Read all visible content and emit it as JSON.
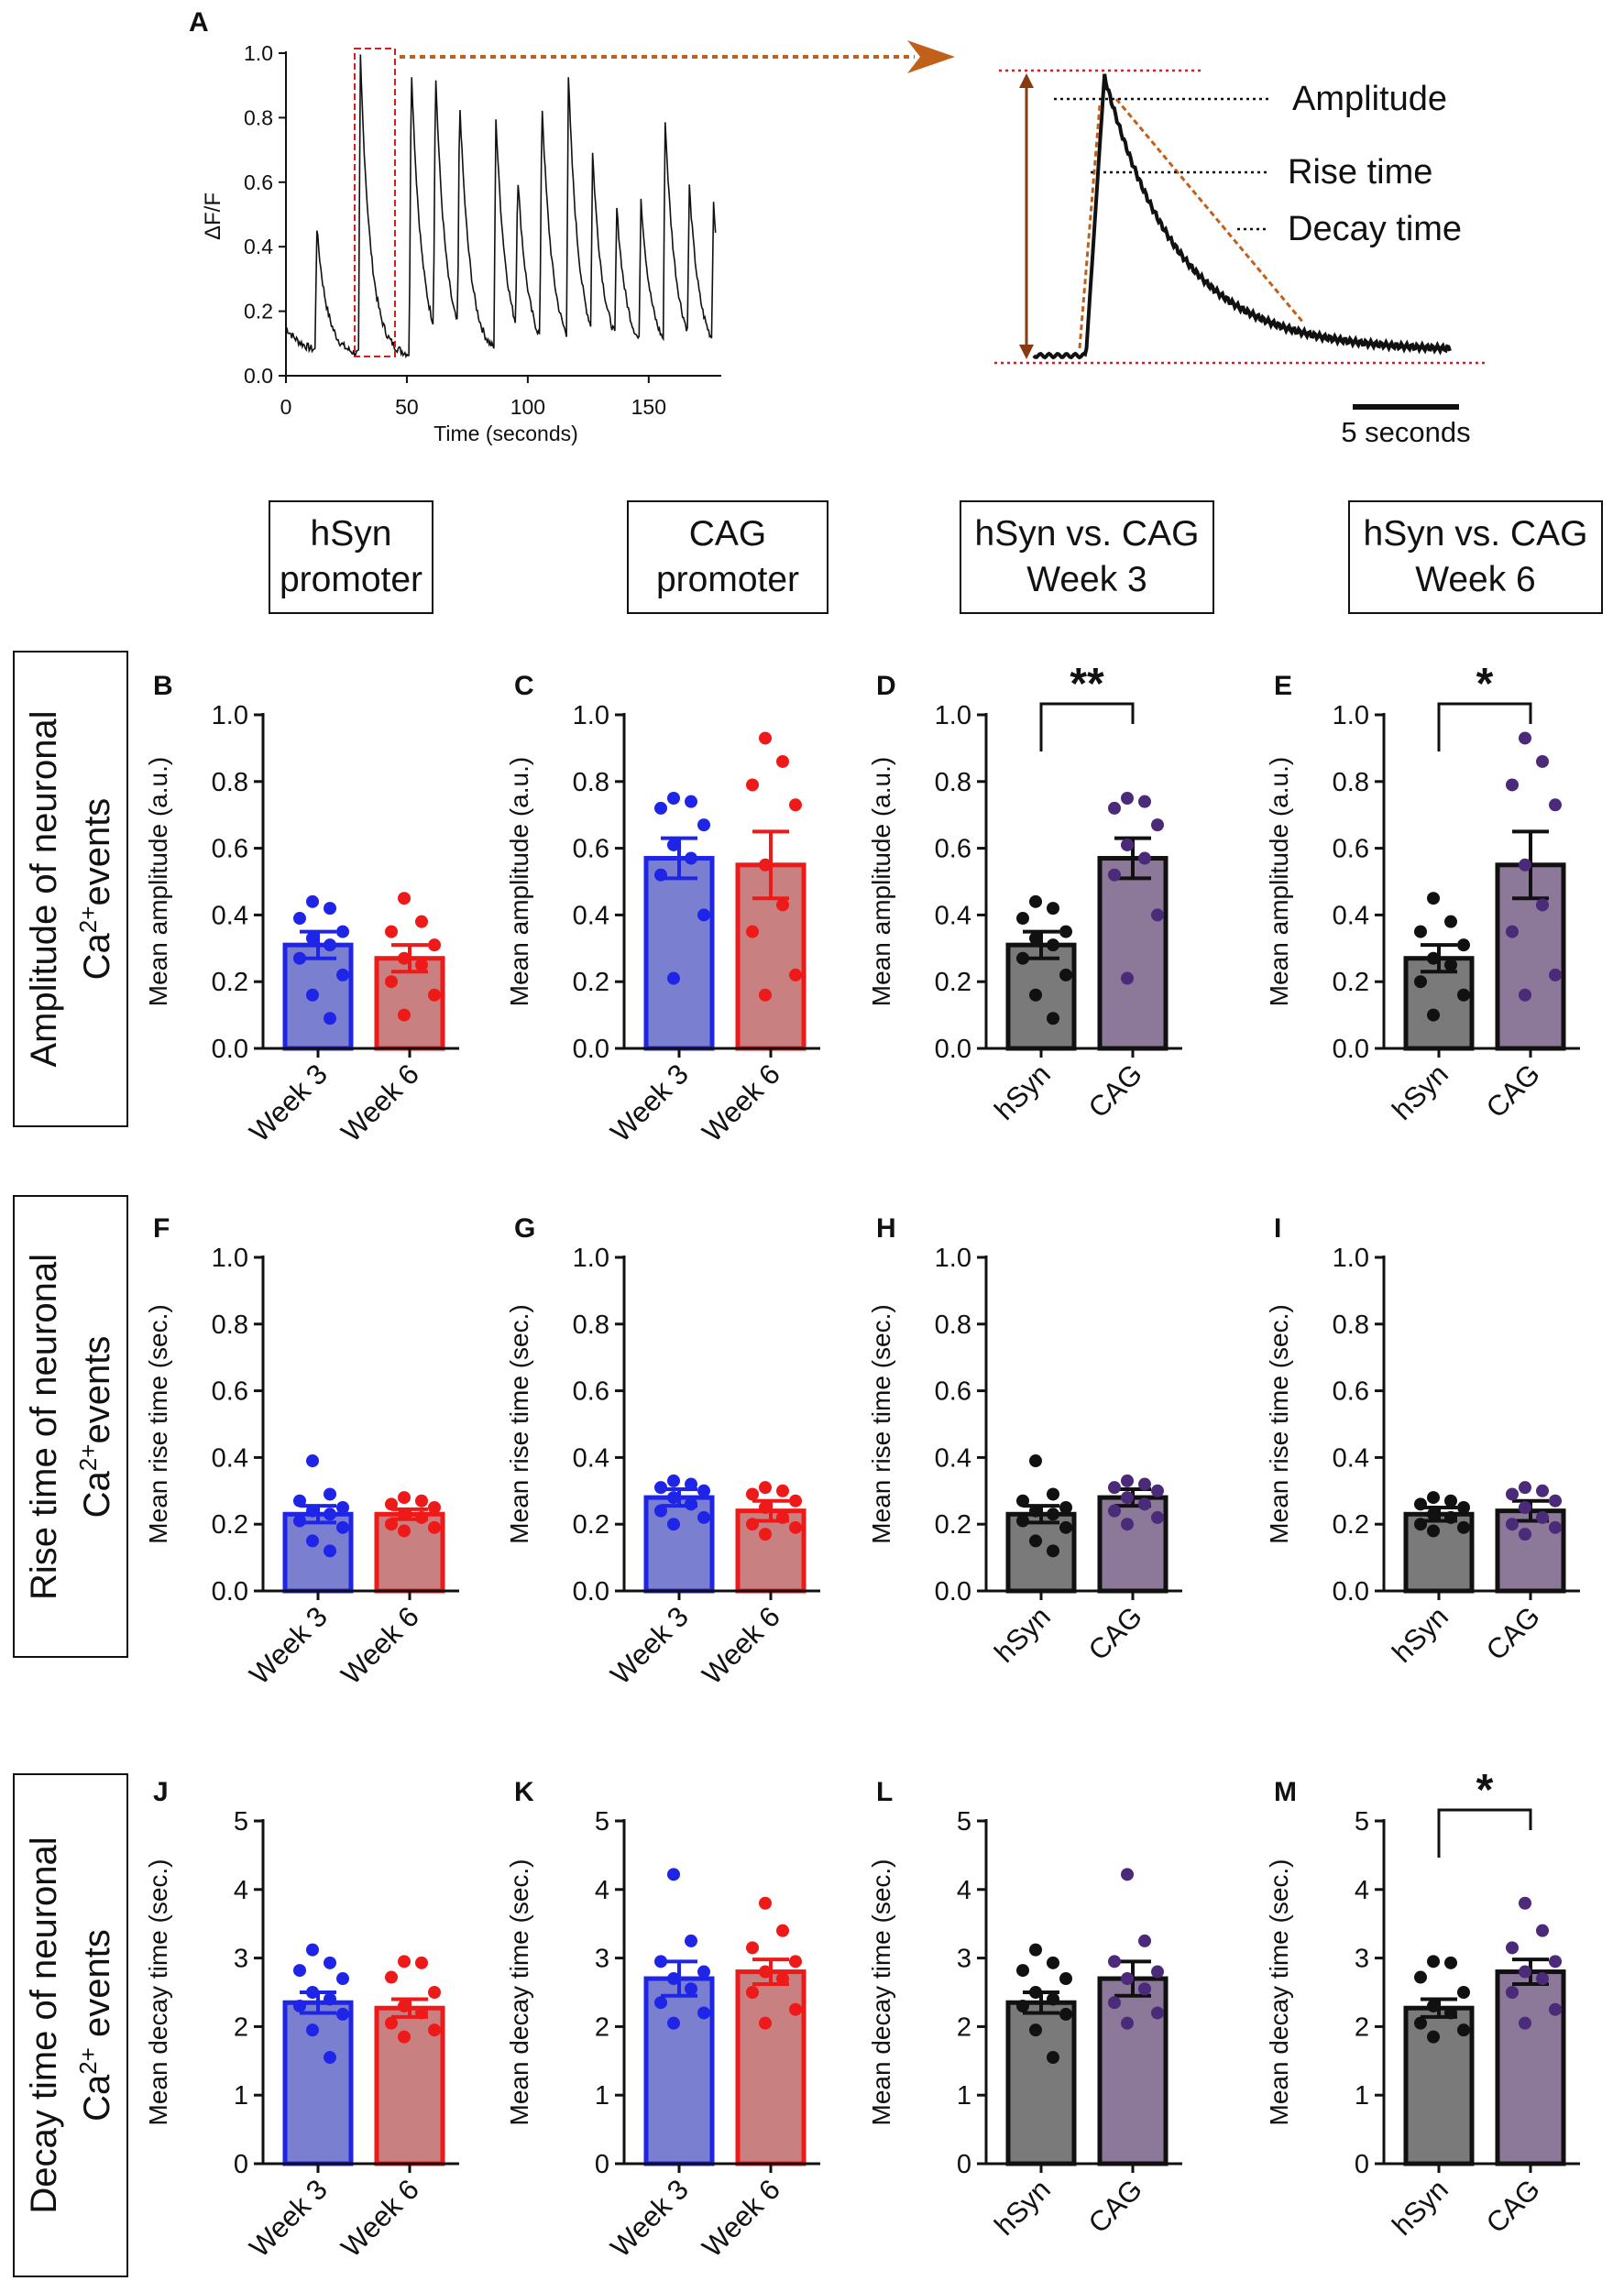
{
  "headers": [
    "hSyn\npromoter",
    "CAG\npromoter",
    "hSyn vs. CAG\nWeek 3",
    "hSyn vs. CAG\nWeek 6"
  ],
  "rows": [
    {
      "main": "Amplitude of neuronal",
      "sub": "Ca",
      "sup": "2+",
      "tail": "events"
    },
    {
      "main": "Rise time of neuronal",
      "sub": "Ca",
      "sup": "2+",
      "tail": "events"
    },
    {
      "main": "Decay time of neuronal",
      "sub": "Ca",
      "sup": "2+",
      "tail": " events"
    }
  ],
  "colors": {
    "blue_fill": "#7b7fd0",
    "blue_edge": "#1f25e6",
    "blue_dot": "#1f25e6",
    "red_fill": "#c98080",
    "red_edge": "#ee1a1a",
    "red_dot": "#ee1a1a",
    "gray_fill": "#7a7a7a",
    "gray_edge": "#111111",
    "gray_dot": "#111111",
    "purple_fill": "#8c7898",
    "purple_edge": "#111111",
    "purple_dot": "#4b2a7a",
    "arrow": "#c0601a",
    "guide": "#d42020"
  },
  "chart_data": [
    {
      "panel": "A",
      "type": "line",
      "xlabel": "Time (seconds)",
      "ylabel": "ΔF/F",
      "xlim": [
        0,
        180
      ],
      "ylim": [
        0,
        1.0
      ],
      "xticks": [
        "0",
        "50",
        "100",
        "150"
      ],
      "yticks": [
        "0.0",
        "0.2",
        "0.4",
        "0.6",
        "0.8",
        "1.0"
      ],
      "baseline": 0.06,
      "events": [
        {
          "t": 12,
          "peak": 0.44
        },
        {
          "t": 30,
          "peak": 0.98
        },
        {
          "t": 51,
          "peak": 0.97
        },
        {
          "t": 61,
          "peak": 0.87
        },
        {
          "t": 71,
          "peak": 0.78
        },
        {
          "t": 86,
          "peak": 0.78
        },
        {
          "t": 95,
          "peak": 0.54
        },
        {
          "t": 105,
          "peak": 0.81
        },
        {
          "t": 116,
          "peak": 0.87
        },
        {
          "t": 126,
          "peak": 0.61
        },
        {
          "t": 136,
          "peak": 0.46
        },
        {
          "t": 146,
          "peak": 0.51
        },
        {
          "t": 156,
          "peak": 0.75
        },
        {
          "t": 166,
          "peak": 0.52
        },
        {
          "t": 176,
          "peak": 0.49
        }
      ],
      "inset": {
        "labels": [
          "Amplitude",
          "Rise time",
          "Decay time"
        ],
        "scalebar": "5 seconds"
      }
    },
    {
      "panel": "B",
      "type": "bar",
      "ylabel": "Mean amplitude (a.u.)",
      "ylim": [
        0,
        1.0
      ],
      "yticks": [
        "0.0",
        "0.2",
        "0.4",
        "0.6",
        "0.8",
        "1.0"
      ],
      "categories": [
        "Week 3",
        "Week 6"
      ],
      "scheme": [
        "blue",
        "red"
      ],
      "values": [
        0.31,
        0.27
      ],
      "sem": [
        0.04,
        0.04
      ],
      "points": [
        [
          0.44,
          0.42,
          0.39,
          0.35,
          0.33,
          0.31,
          0.27,
          0.22,
          0.16,
          0.09
        ],
        [
          0.45,
          0.38,
          0.35,
          0.31,
          0.27,
          0.25,
          0.2,
          0.16,
          0.1
        ]
      ],
      "sig": null
    },
    {
      "panel": "C",
      "type": "bar",
      "ylabel": "Mean amplitude (a.u.)",
      "ylim": [
        0,
        1.0
      ],
      "yticks": [
        "0.0",
        "0.2",
        "0.4",
        "0.6",
        "0.8",
        "1.0"
      ],
      "categories": [
        "Week 3",
        "Week 6"
      ],
      "scheme": [
        "blue",
        "red"
      ],
      "values": [
        0.57,
        0.55
      ],
      "sem": [
        0.06,
        0.1
      ],
      "points": [
        [
          0.75,
          0.74,
          0.72,
          0.67,
          0.61,
          0.57,
          0.52,
          0.4,
          0.21
        ],
        [
          0.93,
          0.86,
          0.79,
          0.73,
          0.55,
          0.43,
          0.35,
          0.22,
          0.16
        ]
      ],
      "sig": null
    },
    {
      "panel": "D",
      "type": "bar",
      "ylabel": "Mean amplitude (a.u.)",
      "ylim": [
        0,
        1.0
      ],
      "yticks": [
        "0.0",
        "0.2",
        "0.4",
        "0.6",
        "0.8",
        "1.0"
      ],
      "categories": [
        "hSyn",
        "CAG"
      ],
      "scheme": [
        "gray",
        "purple"
      ],
      "values": [
        0.31,
        0.57
      ],
      "sem": [
        0.04,
        0.06
      ],
      "points": [
        [
          0.44,
          0.42,
          0.39,
          0.35,
          0.33,
          0.31,
          0.27,
          0.22,
          0.16,
          0.09
        ],
        [
          0.75,
          0.74,
          0.72,
          0.67,
          0.61,
          0.57,
          0.52,
          0.4,
          0.21
        ]
      ],
      "sig": "**"
    },
    {
      "panel": "E",
      "type": "bar",
      "ylabel": "Mean amplitude (a.u.)",
      "ylim": [
        0,
        1.0
      ],
      "yticks": [
        "0.0",
        "0.2",
        "0.4",
        "0.6",
        "0.8",
        "1.0"
      ],
      "categories": [
        "hSyn",
        "CAG"
      ],
      "scheme": [
        "gray",
        "purple"
      ],
      "values": [
        0.27,
        0.55
      ],
      "sem": [
        0.04,
        0.1
      ],
      "points": [
        [
          0.45,
          0.38,
          0.35,
          0.31,
          0.27,
          0.25,
          0.2,
          0.16,
          0.1
        ],
        [
          0.93,
          0.86,
          0.79,
          0.73,
          0.55,
          0.43,
          0.35,
          0.22,
          0.16
        ]
      ],
      "sig": "*"
    },
    {
      "panel": "F",
      "type": "bar",
      "ylabel": "Mean rise time (sec.)",
      "ylim": [
        0,
        1.0
      ],
      "yticks": [
        "0.0",
        "0.2",
        "0.4",
        "0.6",
        "0.8",
        "1.0"
      ],
      "categories": [
        "Week 3",
        "Week 6"
      ],
      "scheme": [
        "blue",
        "red"
      ],
      "values": [
        0.23,
        0.23
      ],
      "sem": [
        0.025,
        0.015
      ],
      "points": [
        [
          0.39,
          0.29,
          0.27,
          0.25,
          0.24,
          0.23,
          0.21,
          0.19,
          0.15,
          0.12
        ],
        [
          0.28,
          0.27,
          0.26,
          0.25,
          0.23,
          0.22,
          0.2,
          0.19,
          0.18
        ]
      ],
      "sig": null
    },
    {
      "panel": "G",
      "type": "bar",
      "ylabel": "Mean rise time (sec.)",
      "ylim": [
        0,
        1.0
      ],
      "yticks": [
        "0.0",
        "0.2",
        "0.4",
        "0.6",
        "0.8",
        "1.0"
      ],
      "categories": [
        "Week 3",
        "Week 6"
      ],
      "scheme": [
        "blue",
        "red"
      ],
      "values": [
        0.28,
        0.24
      ],
      "sem": [
        0.025,
        0.03
      ],
      "points": [
        [
          0.33,
          0.32,
          0.31,
          0.3,
          0.28,
          0.26,
          0.24,
          0.22,
          0.2
        ],
        [
          0.31,
          0.3,
          0.29,
          0.27,
          0.25,
          0.22,
          0.2,
          0.19,
          0.17
        ]
      ],
      "sig": null
    },
    {
      "panel": "H",
      "type": "bar",
      "ylabel": "Mean rise time (sec.)",
      "ylim": [
        0,
        1.0
      ],
      "yticks": [
        "0.0",
        "0.2",
        "0.4",
        "0.6",
        "0.8",
        "1.0"
      ],
      "categories": [
        "hSyn",
        "CAG"
      ],
      "scheme": [
        "gray",
        "purple"
      ],
      "values": [
        0.23,
        0.28
      ],
      "sem": [
        0.025,
        0.025
      ],
      "points": [
        [
          0.39,
          0.29,
          0.27,
          0.25,
          0.24,
          0.23,
          0.21,
          0.19,
          0.15,
          0.12
        ],
        [
          0.33,
          0.32,
          0.31,
          0.3,
          0.28,
          0.26,
          0.24,
          0.22,
          0.2
        ]
      ],
      "sig": null
    },
    {
      "panel": "I",
      "type": "bar",
      "ylabel": "Mean rise time (sec.)",
      "ylim": [
        0,
        1.0
      ],
      "yticks": [
        "0.0",
        "0.2",
        "0.4",
        "0.6",
        "0.8",
        "1.0"
      ],
      "categories": [
        "hSyn",
        "CAG"
      ],
      "scheme": [
        "gray",
        "purple"
      ],
      "values": [
        0.23,
        0.24
      ],
      "sem": [
        0.02,
        0.03
      ],
      "points": [
        [
          0.28,
          0.27,
          0.26,
          0.25,
          0.23,
          0.22,
          0.2,
          0.19,
          0.18
        ],
        [
          0.31,
          0.3,
          0.29,
          0.27,
          0.25,
          0.22,
          0.2,
          0.19,
          0.17
        ]
      ],
      "sig": null
    },
    {
      "panel": "J",
      "type": "bar",
      "ylabel": "Mean decay time (sec.)",
      "ylim": [
        0,
        5
      ],
      "yticks": [
        "0",
        "1",
        "2",
        "3",
        "4",
        "5"
      ],
      "categories": [
        "Week 3",
        "Week 6"
      ],
      "scheme": [
        "blue",
        "red"
      ],
      "values": [
        2.35,
        2.27
      ],
      "sem": [
        0.15,
        0.13
      ],
      "points": [
        [
          3.12,
          2.93,
          2.82,
          2.7,
          2.5,
          2.4,
          2.3,
          2.18,
          1.95,
          1.55
        ],
        [
          2.95,
          2.93,
          2.72,
          2.5,
          2.3,
          2.2,
          2.05,
          1.95,
          1.85
        ]
      ],
      "sig": null
    },
    {
      "panel": "K",
      "type": "bar",
      "ylabel": "Mean decay time (sec.)",
      "ylim": [
        0,
        5
      ],
      "yticks": [
        "0",
        "1",
        "2",
        "3",
        "4",
        "5"
      ],
      "categories": [
        "Week 3",
        "Week 6"
      ],
      "scheme": [
        "blue",
        "red"
      ],
      "values": [
        2.7,
        2.8
      ],
      "sem": [
        0.25,
        0.18
      ],
      "points": [
        [
          4.22,
          3.25,
          2.95,
          2.8,
          2.7,
          2.55,
          2.35,
          2.2,
          2.05
        ],
        [
          3.8,
          3.4,
          3.15,
          2.95,
          2.8,
          2.7,
          2.5,
          2.25,
          2.05
        ]
      ],
      "sig": null
    },
    {
      "panel": "L",
      "type": "bar",
      "ylabel": "Mean decay time (sec.)",
      "ylim": [
        0,
        5
      ],
      "yticks": [
        "0",
        "1",
        "2",
        "3",
        "4",
        "5"
      ],
      "categories": [
        "hSyn",
        "CAG"
      ],
      "scheme": [
        "gray",
        "purple"
      ],
      "values": [
        2.35,
        2.7
      ],
      "sem": [
        0.15,
        0.25
      ],
      "points": [
        [
          3.12,
          2.93,
          2.82,
          2.7,
          2.5,
          2.4,
          2.3,
          2.18,
          1.95,
          1.55
        ],
        [
          4.22,
          3.25,
          2.95,
          2.8,
          2.7,
          2.55,
          2.35,
          2.2,
          2.05
        ]
      ],
      "sig": null
    },
    {
      "panel": "M",
      "type": "bar",
      "ylabel": "Mean decay time (sec.)",
      "ylim": [
        0,
        5
      ],
      "yticks": [
        "0",
        "1",
        "2",
        "3",
        "4",
        "5"
      ],
      "categories": [
        "hSyn",
        "CAG"
      ],
      "scheme": [
        "gray",
        "purple"
      ],
      "values": [
        2.27,
        2.8
      ],
      "sem": [
        0.13,
        0.18
      ],
      "points": [
        [
          2.95,
          2.93,
          2.72,
          2.5,
          2.3,
          2.2,
          2.05,
          1.95,
          1.85
        ],
        [
          3.8,
          3.4,
          3.15,
          2.95,
          2.8,
          2.7,
          2.5,
          2.25,
          2.05
        ]
      ],
      "sig": "*"
    }
  ]
}
